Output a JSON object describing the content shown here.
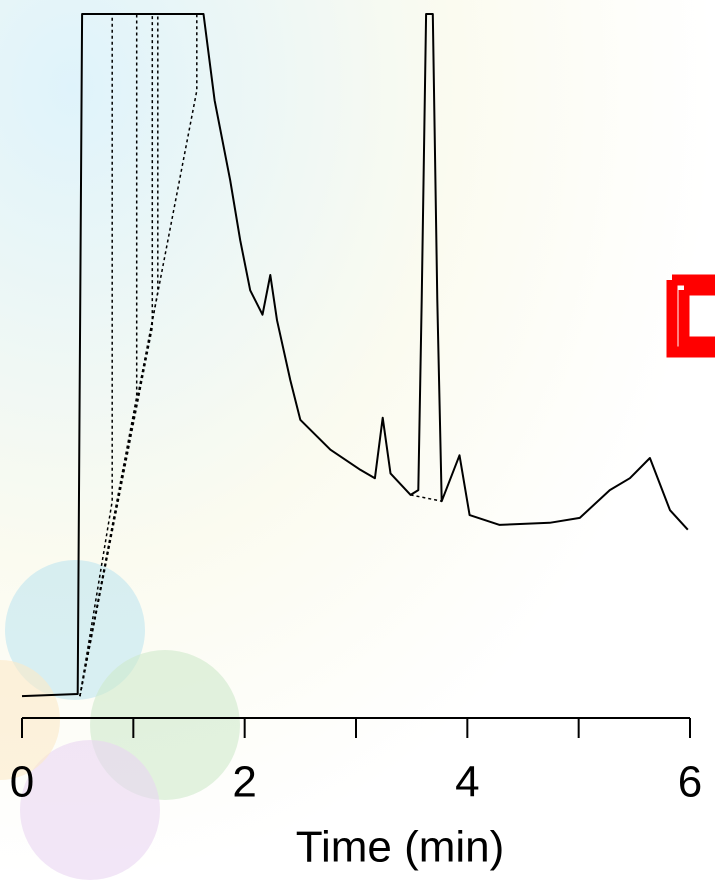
{
  "chart_data": {
    "type": "line",
    "x_label": "Time (min)",
    "x": [
      0,
      0.5,
      0.54,
      1.63,
      1.73,
      1.87,
      1.96,
      2.05,
      2.16,
      2.23,
      2.29,
      2.41,
      2.5,
      2.77,
      3.04,
      3.17,
      3.24,
      3.31,
      3.49,
      3.56,
      3.59,
      3.63,
      3.69,
      3.73,
      3.77,
      3.93,
      4.02,
      4.29,
      4.74,
      5.01,
      5.28,
      5.46,
      5.64,
      5.82,
      5.98
    ],
    "values": [
      2,
      2.3,
      100,
      100,
      87.6,
      76.1,
      67.5,
      60.3,
      56.8,
      62.5,
      56,
      47.4,
      41.7,
      37.4,
      34.5,
      33.3,
      42,
      34,
      30.9,
      31.6,
      58.9,
      100,
      100,
      58.9,
      30,
      36.6,
      28,
      26.6,
      26.9,
      27.6,
      31.6,
      33.3,
      36.2,
      28.7,
      25.9
    ],
    "color": "#000000",
    "baselines": [
      {
        "x": [
          0.52,
          0.81,
          0.81
        ],
        "values": [
          2,
          30,
          100
        ],
        "line_style": "dotted"
      },
      {
        "x": [
          0.52,
          1.03,
          1.03
        ],
        "values": [
          2,
          45,
          100
        ],
        "line_style": "dotted"
      },
      {
        "x": [
          0.52,
          1.17,
          1.17
        ],
        "values": [
          2,
          55,
          100
        ],
        "line_style": "dotted"
      },
      {
        "x": [
          0.52,
          1.22,
          1.22
        ],
        "values": [
          2,
          60,
          100
        ],
        "line_style": "dotted"
      },
      {
        "x": [
          0.52,
          1.57,
          1.57
        ],
        "values": [
          2,
          89,
          100
        ],
        "line_style": "dotted"
      },
      {
        "x": [
          3.49,
          3.77
        ],
        "values": [
          30.9,
          30
        ],
        "line_style": "dotted"
      }
    ],
    "xlim": [
      0,
      6
    ],
    "xticks": [
      0,
      2,
      4,
      6
    ],
    "xminorticks": [
      1,
      3,
      5
    ],
    "ylim": [
      0,
      100
    ]
  }
}
